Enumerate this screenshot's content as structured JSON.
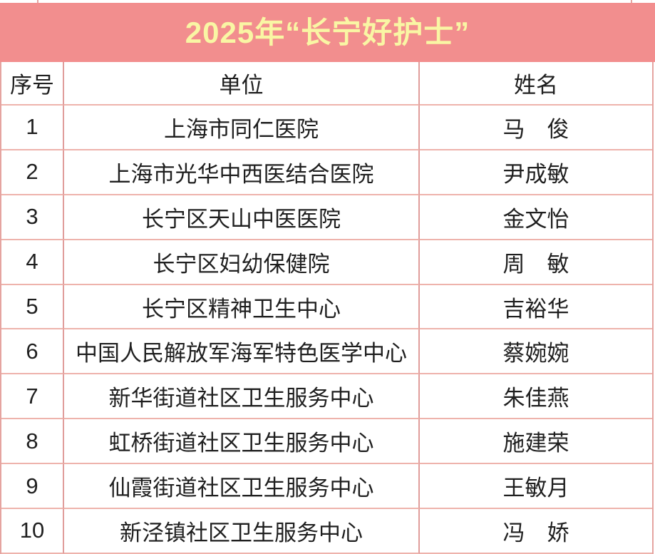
{
  "banner": {
    "title": "2025年“长宁好护士”"
  },
  "table": {
    "headers": {
      "no": "序号",
      "unit": "单位",
      "name": "姓名"
    },
    "rows": [
      {
        "no": "1",
        "unit": "上海市同仁医院",
        "name": "马　俊"
      },
      {
        "no": "2",
        "unit": "上海市光华中西医结合医院",
        "name": "尹成敏"
      },
      {
        "no": "3",
        "unit": "长宁区天山中医医院",
        "name": "金文怡"
      },
      {
        "no": "4",
        "unit": "长宁区妇幼保健院",
        "name": "周　敏"
      },
      {
        "no": "5",
        "unit": "长宁区精神卫生中心",
        "name": "吉裕华"
      },
      {
        "no": "6",
        "unit": "中国人民解放军海军特色医学中心",
        "name": "蔡婉婉"
      },
      {
        "no": "7",
        "unit": "新华街道社区卫生服务中心",
        "name": "朱佳燕"
      },
      {
        "no": "8",
        "unit": "虹桥街道社区卫生服务中心",
        "name": "施建荣"
      },
      {
        "no": "9",
        "unit": "仙霞街道社区卫生服务中心",
        "name": "王敏月"
      },
      {
        "no": "10",
        "unit": "新泾镇社区卫生服务中心",
        "name": "冯　娇"
      }
    ]
  },
  "colors": {
    "banner_bg": "#f28e8e",
    "title_text": "#f9f6a4",
    "grid_line": "#e5a4a0",
    "cell_text": "#1f1f1f"
  }
}
